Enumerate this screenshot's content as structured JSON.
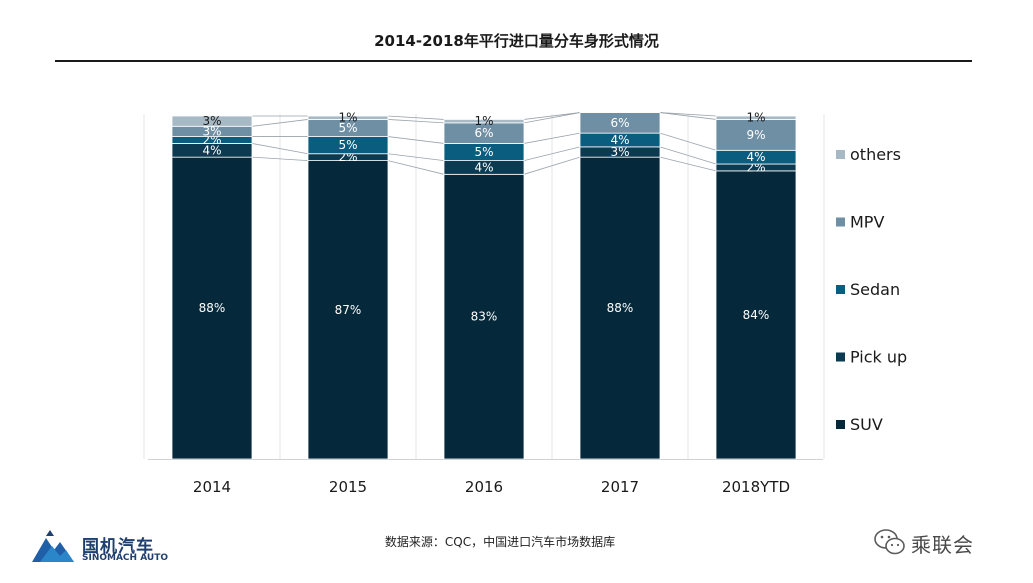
{
  "chart_data": {
    "type": "bar",
    "stacked": true,
    "title": "2014-2018年平行进口量分车身形式情况",
    "categories": [
      "2014",
      "2015",
      "2016",
      "2017",
      "2018YTD"
    ],
    "series": [
      {
        "name": "SUV",
        "values": [
          88,
          87,
          83,
          88,
          84
        ],
        "labels": [
          "88%",
          "87%",
          "83%",
          "88%",
          "84%"
        ],
        "color": "#05283a",
        "text_color": "#ffffff"
      },
      {
        "name": "Pick up",
        "values": [
          4,
          2,
          4,
          3,
          2
        ],
        "labels": [
          "4%",
          "2%",
          "4%",
          "3%",
          "2%"
        ],
        "color": "#0b3a51",
        "text_color": "#ffffff"
      },
      {
        "name": "Sedan",
        "values": [
          2,
          5,
          5,
          4,
          4
        ],
        "labels": [
          "2%",
          "5%",
          "5%",
          "4%",
          "4%"
        ],
        "color": "#0b5d80",
        "text_color": "#ffffff"
      },
      {
        "name": "MPV",
        "values": [
          3,
          5,
          6,
          6,
          9
        ],
        "labels": [
          "3%",
          "5%",
          "6%",
          "6%",
          "9%"
        ],
        "color": "#6f8fa4",
        "text_color": "#ffffff"
      },
      {
        "name": "others",
        "values": [
          3,
          1,
          1,
          0,
          1
        ],
        "labels": [
          "3%",
          "1%",
          "1%",
          "",
          "1%"
        ],
        "color": "#a8b9c6",
        "text_color": "#1a1a1a"
      }
    ],
    "legend_order": [
      "others",
      "MPV",
      "Sedan",
      "Pick up",
      "SUV"
    ],
    "legend_position": "right",
    "ylim": [
      0,
      100
    ],
    "grid": false
  },
  "footer": {
    "source": "数据来源：CQC，中国进口汽车市场数据库",
    "logo_cn": "国机汽车",
    "logo_en": "SINOMACH AUTO",
    "wechat_name": "乘联会"
  }
}
